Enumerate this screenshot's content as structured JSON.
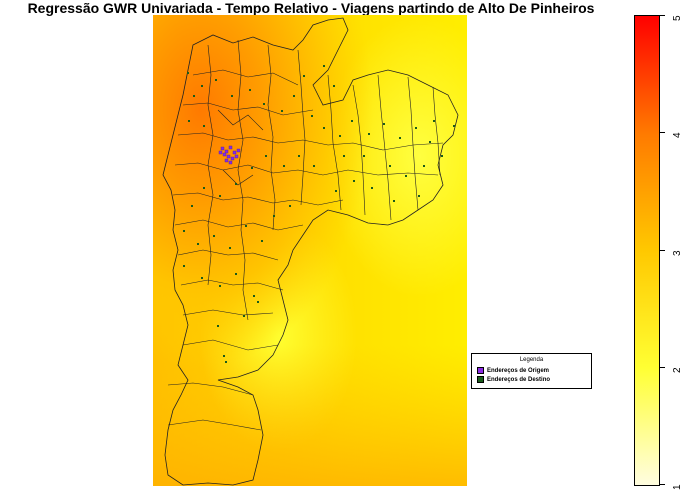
{
  "title": "Regressão GWR Univariada - Tempo Relativo - Viagens partindo de Alto De Pinheiros",
  "legend": {
    "title": "Legenda",
    "items": [
      {
        "label": "Endereços de Origem",
        "color": "#8a2be2"
      },
      {
        "label": "Endereços de Destino",
        "color": "#1a5c1a"
      }
    ]
  },
  "colorbar": {
    "min": 1,
    "max": 5,
    "ticks": [
      "1",
      "2",
      "3",
      "4",
      "5"
    ],
    "colors": [
      "#fffde0",
      "#ffff33",
      "#ffc800",
      "#ff7a00",
      "#ff0000"
    ]
  }
}
